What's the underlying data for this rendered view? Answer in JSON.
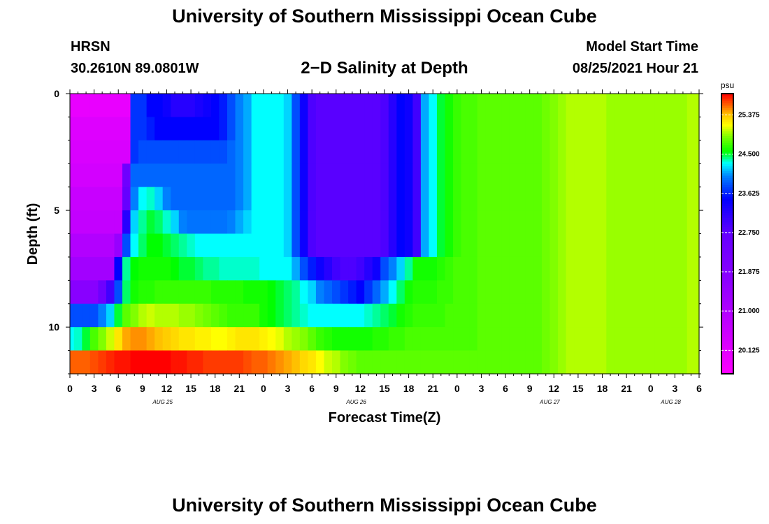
{
  "header": {
    "title": "University of Southern Mississippi Ocean Cube",
    "station": "HRSN",
    "coords": "30.2610N  89.0801W",
    "plot_title": "2−D Salinity at Depth",
    "start_label": "Model Start Time",
    "start_value": "08/25/2021 Hour 21"
  },
  "footer": {
    "title": "University of Southern Mississippi Ocean Cube"
  },
  "chart_data": {
    "type": "heatmap",
    "title": "2−D Salinity at Depth",
    "xlabel": "Forecast Time(Z)",
    "ylabel": "Depth (ft)",
    "x_tick_labels": [
      "0",
      "3",
      "6",
      "9",
      "12",
      "15",
      "18",
      "21",
      "0",
      "3",
      "6",
      "9",
      "12",
      "15",
      "18",
      "21",
      "0",
      "3",
      "6",
      "9",
      "12",
      "15",
      "18",
      "21",
      "0",
      "3",
      "6"
    ],
    "x_tick_hours": [
      0,
      3,
      6,
      9,
      12,
      15,
      18,
      21,
      24,
      27,
      30,
      33,
      36,
      39,
      42,
      45,
      48,
      51,
      54,
      57,
      60,
      63,
      66,
      69,
      72,
      75,
      78
    ],
    "x_date_labels": [
      {
        "label": "AUG 25",
        "hour": 11.5
      },
      {
        "label": "AUG 26",
        "hour": 35.5
      },
      {
        "label": "AUG 27",
        "hour": 59.5
      },
      {
        "label": "AUG 28",
        "hour": 74.5
      }
    ],
    "xlim": [
      0,
      78
    ],
    "y_tick_labels": [
      "0",
      "5",
      "10"
    ],
    "y_tick_values": [
      0,
      5,
      10
    ],
    "ylim": [
      0,
      12
    ],
    "y_inverted": true,
    "colorbar": {
      "unit": "psu",
      "ticks": [
        "25.375",
        "24.500",
        "23.625",
        "22.750",
        "21.875",
        "21.000",
        "20.125"
      ],
      "tick_values": [
        25.375,
        24.5,
        23.625,
        22.75,
        21.875,
        21.0,
        20.125
      ],
      "vmin": 19.6,
      "vmax": 25.85,
      "stops": [
        {
          "v": 19.6,
          "color": "#ff00ff"
        },
        {
          "v": 20.6,
          "color": "#c800ff"
        },
        {
          "v": 21.7,
          "color": "#8c00ff"
        },
        {
          "v": 22.7,
          "color": "#6600ff"
        },
        {
          "v": 23.5,
          "color": "#0000ff"
        },
        {
          "v": 24.0,
          "color": "#0080ff"
        },
        {
          "v": 24.3,
          "color": "#00ffff"
        },
        {
          "v": 24.55,
          "color": "#00ff00"
        },
        {
          "v": 24.9,
          "color": "#80ff00"
        },
        {
          "v": 25.15,
          "color": "#ffff00"
        },
        {
          "v": 25.4,
          "color": "#ffc000"
        },
        {
          "v": 25.6,
          "color": "#ff6000"
        },
        {
          "v": 25.85,
          "color": "#ff0000"
        }
      ]
    },
    "depth_levels_ft": [
      0.5,
      1.5,
      2.5,
      3.5,
      4.5,
      5.5,
      6.5,
      7.5,
      8.5,
      9.5,
      10.5,
      11.5
    ],
    "time_hours": [
      0,
      1,
      2,
      3,
      4,
      5,
      6,
      7,
      8,
      9,
      10,
      11,
      12,
      13,
      14,
      15,
      16,
      17,
      18,
      19,
      20,
      21,
      22,
      23,
      24,
      25,
      26,
      27,
      28,
      29,
      30,
      31,
      32,
      33,
      34,
      35,
      36,
      37,
      38,
      39,
      40,
      41,
      42,
      43,
      44,
      45,
      46,
      47,
      48,
      49,
      50,
      51,
      52,
      53,
      54,
      55,
      56,
      57,
      58,
      59,
      60,
      61,
      62,
      63,
      64,
      65,
      66,
      67,
      68,
      69,
      70,
      71,
      72,
      73,
      74,
      75,
      76,
      77,
      78
    ],
    "salinity_psu": [
      [
        20.0,
        20.0,
        20.0,
        20.0,
        20.0,
        20.0,
        20.0,
        20.0,
        23.7,
        23.7,
        23.5,
        23.5,
        23.4,
        23.2,
        23.2,
        23.2,
        23.3,
        23.4,
        23.5,
        23.6,
        23.8,
        24.0,
        24.1,
        24.3,
        24.3,
        24.3,
        24.3,
        24.2,
        23.8,
        23.4,
        22.9,
        22.8,
        22.8,
        22.8,
        22.8,
        22.8,
        22.8,
        22.8,
        22.8,
        22.9,
        23.2,
        23.5,
        23.4,
        23.0,
        24.1,
        24.3,
        24.5,
        24.6,
        24.7,
        24.75,
        24.75,
        24.8,
        24.8,
        24.8,
        24.8,
        24.8,
        24.8,
        24.8,
        24.8,
        24.85,
        24.9,
        24.95,
        25.0,
        25.0,
        25.0,
        25.0,
        25.0,
        24.95,
        24.95,
        24.95,
        24.95,
        24.95,
        24.95,
        24.95,
        24.95,
        24.95,
        24.95,
        25.0,
        25.0
      ],
      [
        20.2,
        20.2,
        20.2,
        20.2,
        20.2,
        20.2,
        20.2,
        20.2,
        23.7,
        23.7,
        23.6,
        23.5,
        23.5,
        23.5,
        23.5,
        23.5,
        23.5,
        23.5,
        23.5,
        23.6,
        23.8,
        24.0,
        24.1,
        24.3,
        24.3,
        24.3,
        24.3,
        24.2,
        23.8,
        23.4,
        22.9,
        22.8,
        22.8,
        22.8,
        22.8,
        22.8,
        22.8,
        22.8,
        22.8,
        22.9,
        23.2,
        23.5,
        23.4,
        23.0,
        24.1,
        24.3,
        24.5,
        24.6,
        24.7,
        24.75,
        24.75,
        24.8,
        24.8,
        24.8,
        24.8,
        24.8,
        24.8,
        24.8,
        24.8,
        24.85,
        24.9,
        24.95,
        25.0,
        25.0,
        25.0,
        25.0,
        25.0,
        24.95,
        24.95,
        24.95,
        24.95,
        24.95,
        24.95,
        24.95,
        24.95,
        24.95,
        24.95,
        25.0,
        25.0
      ],
      [
        20.3,
        20.3,
        20.3,
        20.3,
        20.3,
        20.3,
        20.3,
        20.3,
        23.7,
        23.8,
        23.8,
        23.8,
        23.8,
        23.8,
        23.8,
        23.8,
        23.8,
        23.8,
        23.8,
        23.8,
        23.9,
        24.0,
        24.1,
        24.3,
        24.3,
        24.3,
        24.3,
        24.2,
        23.8,
        23.4,
        22.9,
        22.8,
        22.8,
        22.8,
        22.8,
        22.8,
        22.8,
        22.8,
        22.8,
        22.9,
        23.2,
        23.5,
        23.4,
        23.0,
        24.1,
        24.3,
        24.5,
        24.6,
        24.7,
        24.75,
        24.75,
        24.8,
        24.8,
        24.8,
        24.8,
        24.8,
        24.8,
        24.8,
        24.8,
        24.85,
        24.9,
        24.95,
        25.0,
        25.0,
        25.0,
        25.0,
        25.0,
        24.95,
        24.95,
        24.95,
        24.95,
        24.95,
        24.95,
        24.95,
        24.95,
        24.95,
        24.95,
        25.0,
        25.0
      ],
      [
        20.4,
        20.4,
        20.4,
        20.4,
        20.4,
        20.4,
        20.4,
        22.5,
        23.9,
        23.9,
        23.9,
        23.9,
        23.9,
        23.9,
        23.9,
        23.9,
        23.9,
        23.9,
        23.9,
        23.9,
        23.9,
        24.0,
        24.1,
        24.3,
        24.3,
        24.3,
        24.3,
        24.2,
        23.8,
        23.4,
        22.9,
        22.8,
        22.8,
        22.8,
        22.8,
        22.8,
        22.8,
        22.8,
        22.8,
        22.9,
        23.2,
        23.5,
        23.4,
        23.0,
        24.1,
        24.3,
        24.5,
        24.6,
        24.7,
        24.75,
        24.75,
        24.8,
        24.8,
        24.8,
        24.8,
        24.8,
        24.8,
        24.8,
        24.8,
        24.85,
        24.9,
        24.95,
        25.0,
        25.0,
        25.0,
        25.0,
        25.0,
        24.95,
        24.95,
        24.95,
        24.95,
        24.95,
        24.95,
        24.95,
        24.95,
        24.95,
        24.95,
        25.0,
        25.0
      ],
      [
        20.6,
        20.6,
        20.6,
        20.6,
        20.6,
        20.6,
        20.6,
        22.7,
        24.0,
        24.3,
        24.35,
        24.2,
        24.0,
        23.9,
        23.9,
        23.9,
        23.9,
        23.9,
        23.9,
        23.9,
        23.9,
        24.0,
        24.1,
        24.3,
        24.3,
        24.3,
        24.3,
        24.2,
        23.8,
        23.4,
        22.9,
        22.8,
        22.8,
        22.8,
        22.8,
        22.8,
        22.8,
        22.8,
        22.8,
        22.9,
        23.2,
        23.5,
        23.4,
        23.0,
        24.1,
        24.3,
        24.5,
        24.6,
        24.7,
        24.75,
        24.75,
        24.8,
        24.8,
        24.8,
        24.8,
        24.8,
        24.8,
        24.8,
        24.8,
        24.85,
        24.9,
        24.95,
        25.0,
        25.0,
        25.0,
        25.0,
        25.0,
        24.95,
        24.95,
        24.95,
        24.95,
        24.95,
        24.95,
        24.95,
        24.95,
        24.95,
        24.95,
        25.0,
        25.0
      ],
      [
        20.7,
        20.7,
        20.7,
        20.7,
        20.7,
        20.7,
        20.7,
        23.2,
        24.2,
        24.4,
        24.5,
        24.45,
        24.35,
        24.2,
        24.0,
        23.95,
        23.95,
        23.95,
        23.95,
        23.95,
        24.0,
        24.1,
        24.2,
        24.3,
        24.3,
        24.3,
        24.3,
        24.2,
        23.8,
        23.4,
        22.9,
        22.8,
        22.8,
        22.8,
        22.8,
        22.8,
        22.8,
        22.8,
        22.8,
        22.9,
        23.2,
        23.5,
        23.4,
        23.0,
        24.1,
        24.3,
        24.5,
        24.6,
        24.7,
        24.75,
        24.75,
        24.8,
        24.8,
        24.8,
        24.8,
        24.8,
        24.8,
        24.8,
        24.8,
        24.85,
        24.9,
        24.95,
        25.0,
        25.0,
        25.0,
        25.0,
        25.0,
        24.95,
        24.95,
        24.95,
        24.95,
        24.95,
        24.95,
        24.95,
        24.95,
        24.95,
        24.95,
        25.0,
        25.0
      ],
      [
        21.0,
        21.0,
        21.0,
        21.0,
        21.0,
        21.0,
        21.5,
        23.8,
        24.3,
        24.45,
        24.55,
        24.55,
        24.5,
        24.45,
        24.4,
        24.35,
        24.3,
        24.3,
        24.3,
        24.3,
        24.3,
        24.3,
        24.3,
        24.3,
        24.3,
        24.3,
        24.3,
        24.2,
        23.8,
        23.4,
        22.9,
        22.8,
        22.8,
        22.8,
        22.8,
        22.8,
        22.8,
        22.8,
        22.8,
        22.9,
        23.2,
        23.5,
        23.4,
        23.0,
        24.1,
        24.3,
        24.5,
        24.6,
        24.7,
        24.75,
        24.75,
        24.8,
        24.8,
        24.8,
        24.8,
        24.8,
        24.8,
        24.8,
        24.8,
        24.85,
        24.9,
        24.95,
        25.0,
        25.0,
        25.0,
        25.0,
        25.0,
        24.95,
        24.95,
        24.95,
        24.95,
        24.95,
        24.95,
        24.95,
        24.95,
        24.95,
        24.95,
        25.0,
        25.0
      ],
      [
        21.3,
        21.3,
        21.3,
        21.3,
        21.3,
        21.3,
        23.5,
        24.4,
        24.55,
        24.6,
        24.6,
        24.6,
        24.6,
        24.55,
        24.5,
        24.5,
        24.45,
        24.4,
        24.4,
        24.35,
        24.35,
        24.35,
        24.35,
        24.35,
        24.3,
        24.3,
        24.3,
        24.3,
        24.1,
        23.8,
        23.6,
        23.4,
        23.2,
        23.0,
        22.9,
        22.9,
        23.0,
        23.2,
        23.4,
        23.8,
        24.0,
        24.2,
        24.4,
        24.6,
        24.6,
        24.6,
        24.65,
        24.7,
        24.75,
        24.75,
        24.75,
        24.8,
        24.8,
        24.8,
        24.8,
        24.8,
        24.8,
        24.8,
        24.8,
        24.85,
        24.9,
        24.95,
        25.0,
        25.0,
        25.0,
        25.0,
        25.0,
        24.95,
        24.95,
        24.95,
        24.95,
        24.95,
        24.95,
        24.95,
        24.95,
        24.95,
        24.95,
        25.0,
        25.0
      ],
      [
        21.8,
        21.8,
        21.8,
        21.8,
        22.5,
        23.0,
        23.8,
        24.45,
        24.6,
        24.65,
        24.65,
        24.7,
        24.7,
        24.7,
        24.7,
        24.7,
        24.7,
        24.7,
        24.65,
        24.65,
        24.65,
        24.65,
        24.6,
        24.6,
        24.6,
        24.55,
        24.5,
        24.45,
        24.4,
        24.3,
        24.2,
        24.0,
        23.9,
        23.8,
        23.7,
        23.6,
        23.5,
        23.7,
        23.9,
        24.1,
        24.3,
        24.45,
        24.6,
        24.65,
        24.65,
        24.65,
        24.7,
        24.7,
        24.75,
        24.75,
        24.75,
        24.8,
        24.8,
        24.8,
        24.8,
        24.8,
        24.8,
        24.8,
        24.8,
        24.85,
        24.9,
        24.95,
        25.0,
        25.0,
        25.0,
        25.0,
        25.0,
        24.95,
        24.95,
        24.95,
        24.95,
        24.95,
        24.95,
        24.95,
        24.95,
        24.95,
        24.95,
        25.0,
        25.0
      ],
      [
        23.8,
        23.8,
        23.8,
        23.8,
        24.0,
        24.2,
        24.5,
        24.8,
        24.9,
        25.0,
        25.05,
        25.0,
        25.0,
        25.0,
        24.95,
        24.95,
        24.9,
        24.85,
        24.8,
        24.75,
        24.7,
        24.7,
        24.7,
        24.7,
        24.6,
        24.55,
        24.5,
        24.45,
        24.4,
        24.35,
        24.3,
        24.3,
        24.3,
        24.3,
        24.3,
        24.3,
        24.3,
        24.35,
        24.4,
        24.45,
        24.5,
        24.6,
        24.65,
        24.7,
        24.7,
        24.7,
        24.7,
        24.75,
        24.75,
        24.75,
        24.75,
        24.8,
        24.8,
        24.8,
        24.8,
        24.8,
        24.8,
        24.8,
        24.8,
        24.85,
        24.9,
        24.95,
        25.0,
        25.0,
        25.0,
        25.0,
        25.0,
        24.95,
        24.95,
        24.95,
        24.95,
        24.95,
        24.95,
        24.95,
        24.95,
        24.95,
        24.95,
        25.0,
        25.0
      ],
      [
        24.3,
        24.35,
        24.5,
        24.75,
        24.9,
        25.05,
        25.25,
        25.45,
        25.5,
        25.5,
        25.45,
        25.4,
        25.35,
        25.3,
        25.25,
        25.25,
        25.2,
        25.2,
        25.15,
        25.15,
        25.2,
        25.25,
        25.25,
        25.25,
        25.2,
        25.15,
        25.1,
        25.0,
        24.95,
        24.9,
        24.8,
        24.7,
        24.65,
        24.6,
        24.6,
        24.6,
        24.6,
        24.6,
        24.65,
        24.65,
        24.7,
        24.7,
        24.75,
        24.75,
        24.75,
        24.75,
        24.75,
        24.75,
        24.75,
        24.75,
        24.75,
        24.8,
        24.8,
        24.8,
        24.8,
        24.8,
        24.8,
        24.8,
        24.8,
        24.85,
        24.9,
        24.95,
        25.0,
        25.0,
        25.0,
        25.0,
        25.0,
        24.95,
        24.95,
        24.95,
        24.95,
        24.95,
        24.95,
        24.95,
        24.95,
        24.95,
        24.95,
        25.0,
        25.0
      ],
      [
        25.6,
        25.6,
        25.6,
        25.65,
        25.7,
        25.75,
        25.8,
        25.8,
        25.85,
        25.85,
        25.85,
        25.85,
        25.85,
        25.8,
        25.8,
        25.75,
        25.75,
        25.7,
        25.7,
        25.7,
        25.7,
        25.7,
        25.65,
        25.6,
        25.6,
        25.55,
        25.5,
        25.45,
        25.4,
        25.3,
        25.25,
        25.15,
        25.05,
        25.0,
        24.9,
        24.85,
        24.8,
        24.8,
        24.8,
        24.8,
        24.8,
        24.8,
        24.8,
        24.8,
        24.8,
        24.8,
        24.8,
        24.8,
        24.8,
        24.8,
        24.8,
        24.8,
        24.8,
        24.8,
        24.8,
        24.8,
        24.8,
        24.8,
        24.8,
        24.85,
        24.9,
        24.95,
        25.0,
        25.0,
        25.0,
        25.0,
        25.0,
        24.95,
        24.95,
        24.95,
        24.95,
        24.95,
        24.95,
        24.95,
        24.95,
        24.95,
        24.95,
        25.0,
        25.0
      ]
    ]
  }
}
